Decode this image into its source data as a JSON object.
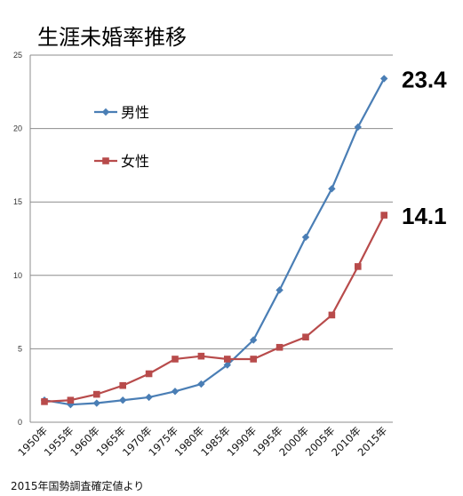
{
  "chart_data": {
    "type": "line",
    "title": "生涯未婚率推移",
    "source": "2015年国勢調査確定値より",
    "categories": [
      "1950年",
      "1955年",
      "1960年",
      "1965年",
      "1970年",
      "1975年",
      "1980年",
      "1985年",
      "1990年",
      "1995年",
      "2000年",
      "2005年",
      "2010年",
      "2015年"
    ],
    "ylim": [
      0,
      25
    ],
    "yticks": [
      "0",
      "5",
      "10",
      "15",
      "20",
      "25"
    ],
    "grid": "horizontal",
    "legend_placement": "top-left",
    "series": [
      {
        "name": "男性",
        "color": "#4a7eb5",
        "marker": "diamond",
        "values": [
          1.5,
          1.2,
          1.3,
          1.5,
          1.7,
          2.1,
          2.6,
          3.9,
          5.6,
          9.0,
          12.6,
          15.9,
          20.1,
          23.4
        ],
        "end_label": "23.4"
      },
      {
        "name": "女性",
        "color": "#b84b4b",
        "marker": "square",
        "values": [
          1.4,
          1.5,
          1.9,
          2.5,
          3.3,
          4.3,
          4.5,
          4.3,
          4.3,
          5.1,
          5.8,
          7.3,
          10.6,
          14.1
        ],
        "end_label": "14.1"
      }
    ]
  }
}
